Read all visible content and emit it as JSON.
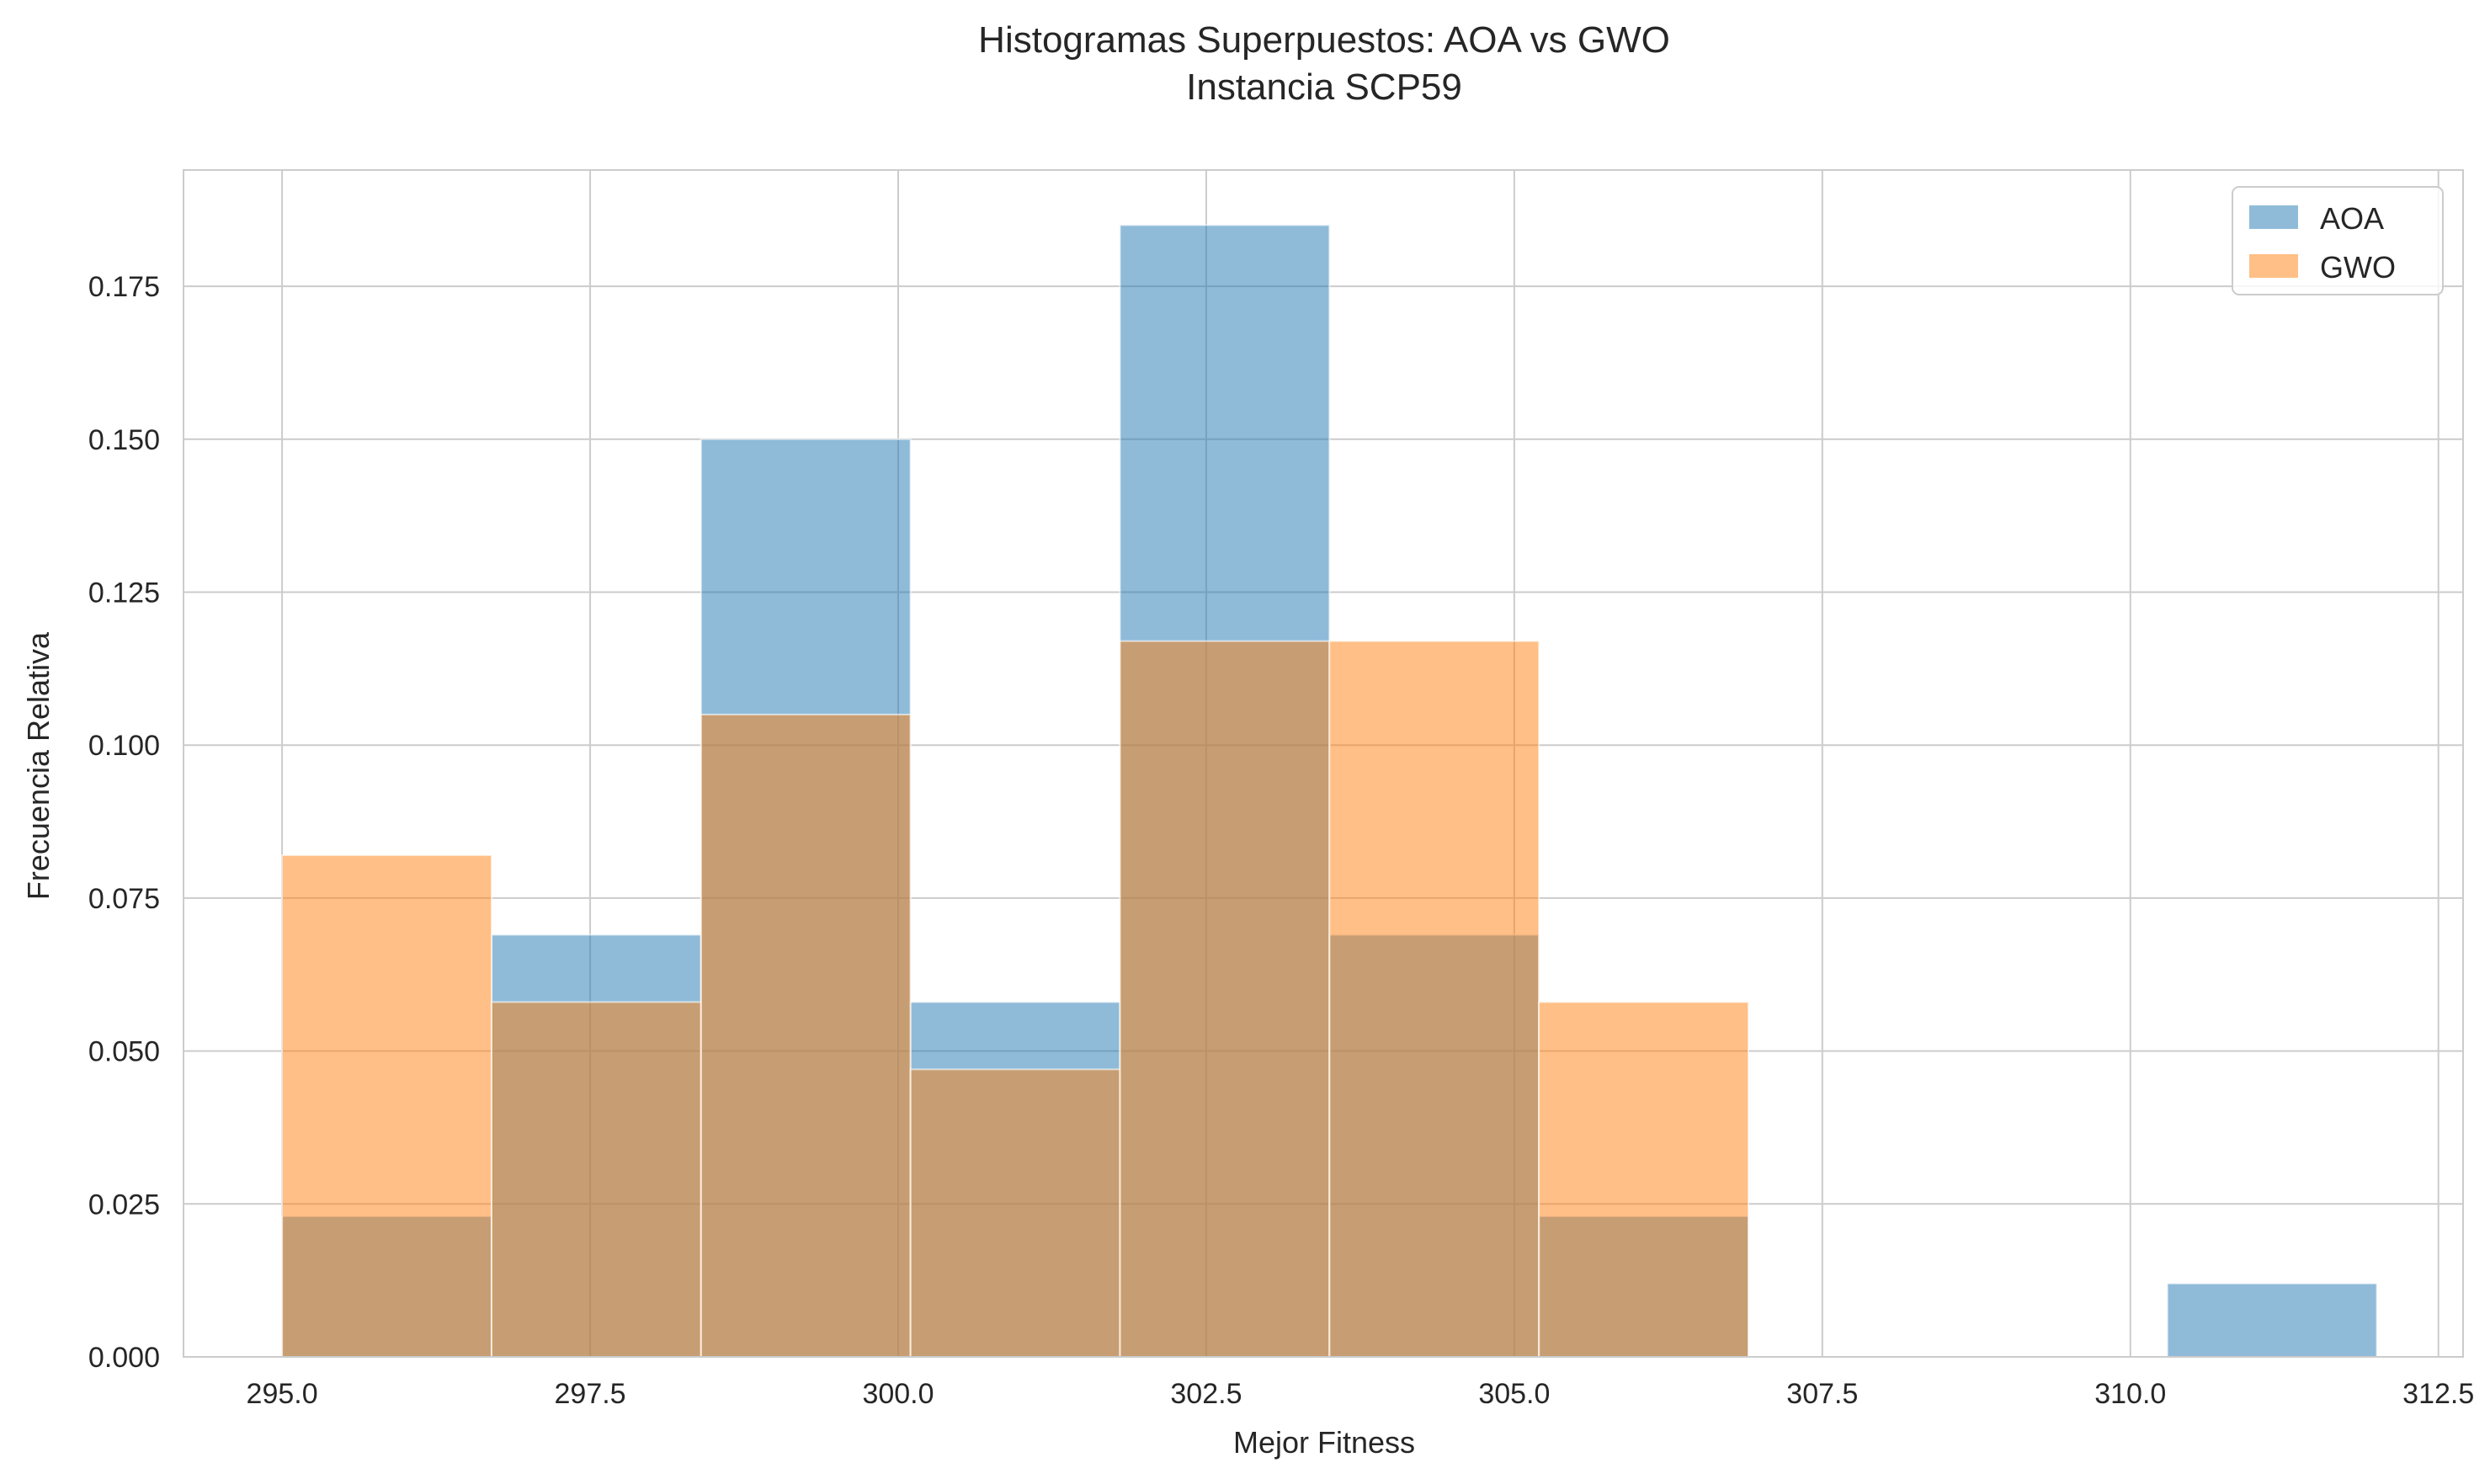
{
  "chart_data": {
    "type": "bar",
    "title": "Histogramas Superpuestos: AOA vs GWO",
    "subtitle": "Instancia SCP59",
    "xlabel": "Mejor Fitness",
    "ylabel": "Frecuencia Relativa",
    "xlim": [
      294.2,
      312.7
    ],
    "ylim": [
      0,
      0.194
    ],
    "xticks": [
      "295.0",
      "297.5",
      "300.0",
      "302.5",
      "305.0",
      "307.5",
      "310.0",
      "312.5"
    ],
    "yticks": [
      "0.000",
      "0.025",
      "0.050",
      "0.075",
      "0.100",
      "0.125",
      "0.150",
      "0.175"
    ],
    "grid": true,
    "legend_position": "top-right",
    "series": [
      {
        "name": "AOA",
        "color": "#1f77b4",
        "bins": [
          {
            "x0": 295.0,
            "x1": 296.7,
            "value": 0.023
          },
          {
            "x0": 296.7,
            "x1": 298.4,
            "value": 0.069
          },
          {
            "x0": 298.4,
            "x1": 300.1,
            "value": 0.15
          },
          {
            "x0": 300.1,
            "x1": 301.8,
            "value": 0.058
          },
          {
            "x0": 301.8,
            "x1": 303.5,
            "value": 0.185
          },
          {
            "x0": 303.5,
            "x1": 305.2,
            "value": 0.069
          },
          {
            "x0": 305.2,
            "x1": 306.9,
            "value": 0.023
          },
          {
            "x0": 306.9,
            "x1": 308.6,
            "value": 0.0
          },
          {
            "x0": 308.6,
            "x1": 310.3,
            "value": 0.0
          },
          {
            "x0": 310.3,
            "x1": 312.0,
            "value": 0.012
          }
        ]
      },
      {
        "name": "GWO",
        "color": "#ff7f0e",
        "bins": [
          {
            "x0": 295.0,
            "x1": 296.7,
            "value": 0.082
          },
          {
            "x0": 296.7,
            "x1": 298.4,
            "value": 0.058
          },
          {
            "x0": 298.4,
            "x1": 300.1,
            "value": 0.105
          },
          {
            "x0": 300.1,
            "x1": 301.8,
            "value": 0.047
          },
          {
            "x0": 301.8,
            "x1": 303.5,
            "value": 0.117
          },
          {
            "x0": 303.5,
            "x1": 305.2,
            "value": 0.117
          },
          {
            "x0": 305.2,
            "x1": 306.9,
            "value": 0.058
          }
        ]
      }
    ]
  }
}
